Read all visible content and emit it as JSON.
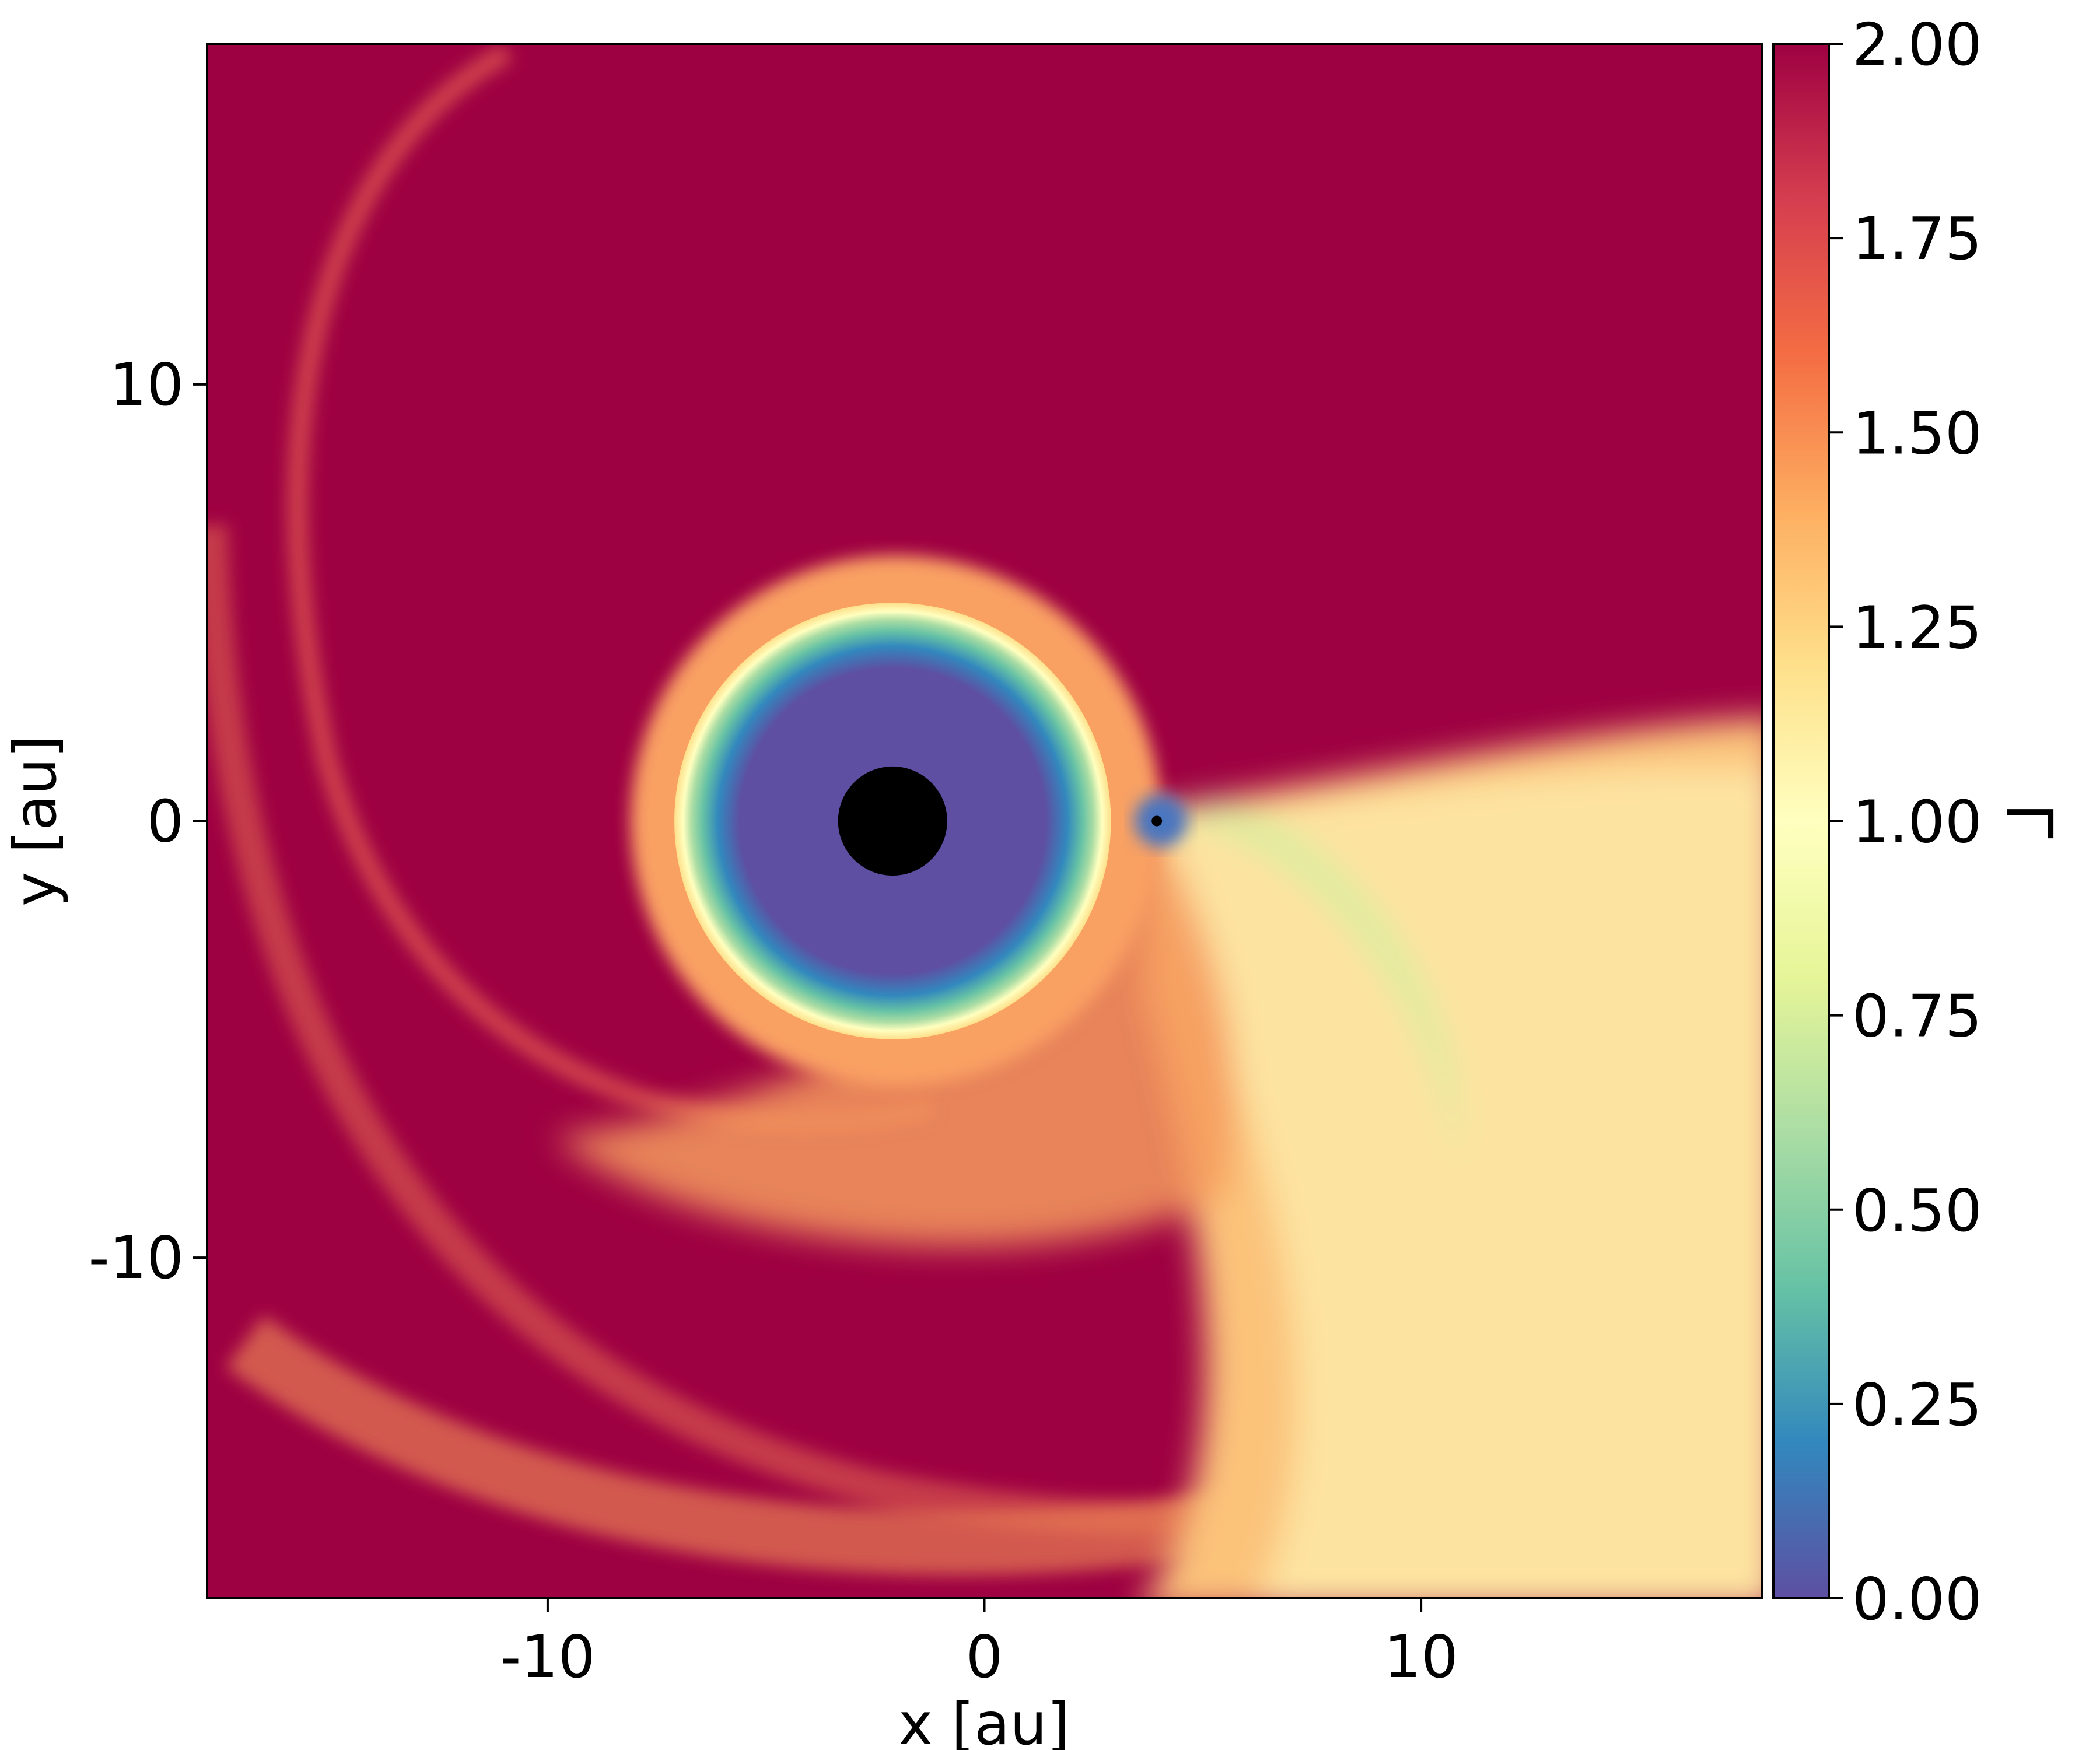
{
  "chart_data": {
    "type": "heatmap",
    "title": "",
    "xlabel": "x [au]",
    "ylabel": "y [au]",
    "xlim": [
      -17.8,
      17.8
    ],
    "ylim": [
      -17.8,
      17.8
    ],
    "x_ticks": [
      {
        "value": -10,
        "label": "-10"
      },
      {
        "value": 0,
        "label": "0"
      },
      {
        "value": 10,
        "label": "10"
      }
    ],
    "y_ticks": [
      {
        "value": 10,
        "label": "10"
      },
      {
        "value": 0,
        "label": "0"
      },
      {
        "value": -10,
        "label": "-10"
      }
    ],
    "colorbar": {
      "label": "Γ",
      "range": [
        0.0,
        2.0
      ],
      "colormap": "Spectral_r",
      "ticks": [
        {
          "value": 0.0,
          "label": "0.00"
        },
        {
          "value": 0.25,
          "label": "0.25"
        },
        {
          "value": 0.5,
          "label": "0.50"
        },
        {
          "value": 0.75,
          "label": "0.75"
        },
        {
          "value": 1.0,
          "label": "1.00"
        },
        {
          "value": 1.25,
          "label": "1.25"
        },
        {
          "value": 1.5,
          "label": "1.50"
        },
        {
          "value": 1.75,
          "label": "1.75"
        },
        {
          "value": 2.0,
          "label": "2.00"
        }
      ],
      "color_stops": [
        "#5e4fa2",
        "#3288bd",
        "#66c2a5",
        "#abdda4",
        "#e6f598",
        "#ffffbf",
        "#fee08b",
        "#fdae61",
        "#f46d43",
        "#d53e4f",
        "#9e0142"
      ]
    },
    "background_value": 2.0,
    "features": {
      "primary_star": {
        "x": -2.1,
        "y": 0.0,
        "radius": 1.25,
        "color": "#000000"
      },
      "companion": {
        "x": 3.95,
        "y": 0.0,
        "radius": 0.12,
        "color": "#000000"
      },
      "inner_bubble": {
        "center_x": -2.1,
        "center_y": 0.0,
        "radius": 5.0,
        "core_value": 0.0
      }
    }
  }
}
